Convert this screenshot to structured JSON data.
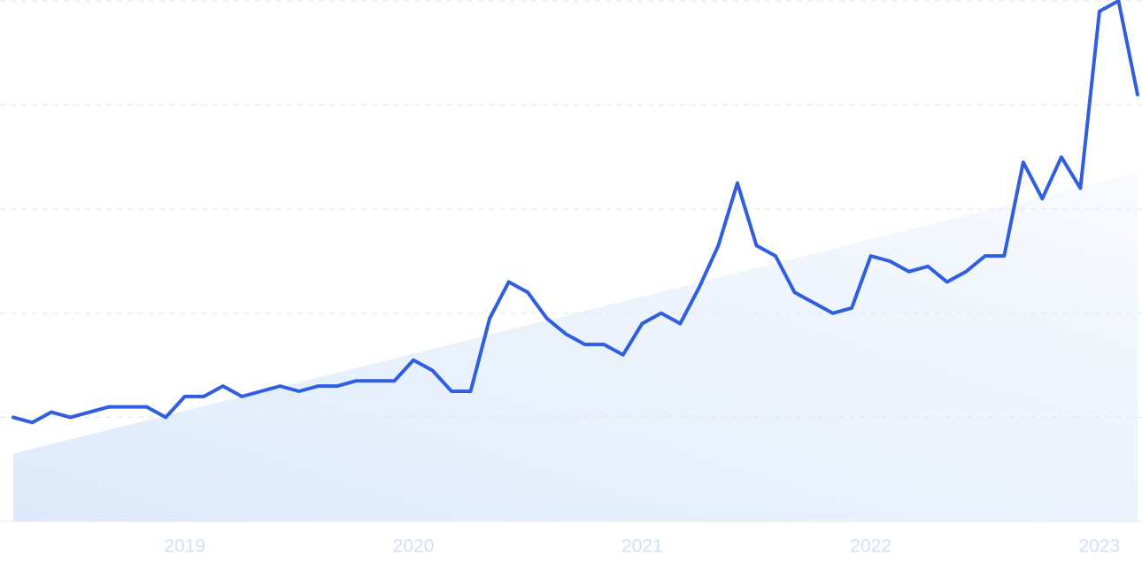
{
  "chart_data": {
    "type": "line",
    "categories": [
      null,
      null,
      null,
      null,
      null,
      null,
      null,
      null,
      null,
      "2019",
      null,
      null,
      null,
      null,
      null,
      null,
      null,
      null,
      null,
      null,
      null,
      "2020",
      null,
      null,
      null,
      null,
      null,
      null,
      null,
      null,
      null,
      null,
      null,
      "2021",
      null,
      null,
      null,
      null,
      null,
      null,
      null,
      null,
      null,
      null,
      null,
      "2022",
      null,
      null,
      null,
      null,
      null,
      null,
      null,
      null,
      null,
      null,
      null,
      "2023",
      null,
      null
    ],
    "series": [
      {
        "color": "#2f5fe0",
        "values": [
          20,
          19,
          21,
          20,
          21,
          22,
          22,
          22,
          20,
          24,
          24,
          26,
          24,
          25,
          26,
          25,
          26,
          26,
          27,
          27,
          27,
          31,
          29,
          25,
          25,
          39,
          46,
          44,
          39,
          36,
          34,
          34,
          32,
          38,
          40,
          38,
          45,
          53,
          65,
          53,
          51,
          44,
          42,
          40,
          41,
          51,
          50,
          48,
          49,
          46,
          48,
          51,
          51,
          69,
          62,
          70,
          64,
          98,
          100,
          82
        ]
      }
    ],
    "trend": {
      "color": "#dbe8fb",
      "values": [
        13,
        67
      ]
    },
    "ylim": [
      0,
      100
    ],
    "yticks": [
      20,
      40,
      60,
      80,
      100
    ],
    "grid": true
  }
}
